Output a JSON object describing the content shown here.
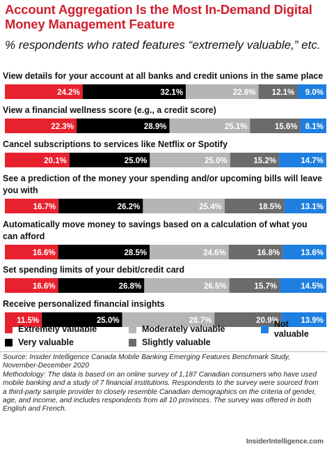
{
  "title": "Account Aggregation Is the Most In-Demand Digital Money Management Feature",
  "subtitle": "% respondents who rated features “extremely valuable,” etc.",
  "colors": {
    "extremely": "#e8212e",
    "very": "#000000",
    "moderately": "#b5b5b5",
    "slightly": "#6b6b6b",
    "not": "#1e7fe0"
  },
  "chart_data": {
    "type": "bar",
    "stacked": true,
    "orientation": "horizontal",
    "xlim": [
      0,
      100
    ],
    "categories": [
      [
        "View details for your account at all banks and credit unions in the same place"
      ],
      [
        "View a financial wellness score (e.g., a credit score)"
      ],
      [
        "Cancel subscriptions to services like Netflix or Spotify"
      ],
      [
        "See a prediction of the money your spending and/or upcoming bills will leave",
        "you with"
      ],
      [
        "Automatically move money to savings based on a calculation of what you",
        "can afford"
      ],
      [
        "Set spending limits of your debit/credit card"
      ],
      [
        "Receive personalized financial insights"
      ]
    ],
    "series": [
      {
        "name": "Extremely valuable",
        "values": [
          24.2,
          22.3,
          20.1,
          16.7,
          16.6,
          16.6,
          11.5
        ]
      },
      {
        "name": "Very valuable",
        "values": [
          32.1,
          28.9,
          25.0,
          26.2,
          28.5,
          26.8,
          25.0
        ]
      },
      {
        "name": "Moderately valuable",
        "values": [
          22.6,
          25.1,
          25.0,
          25.4,
          24.6,
          26.5,
          28.7
        ]
      },
      {
        "name": "Slightly valuable",
        "values": [
          12.1,
          15.6,
          15.2,
          18.5,
          16.8,
          15.7,
          20.9
        ]
      },
      {
        "name": "Not valuable",
        "values": [
          9.0,
          8.1,
          14.7,
          13.1,
          13.6,
          14.5,
          13.9
        ]
      }
    ],
    "legend_position": "bottom"
  },
  "legend": {
    "extremely": "Extremely valuable",
    "very": "Very valuable",
    "moderately": "Moderately valuable",
    "slightly": "Slightly valuable",
    "not": "Not valuable"
  },
  "source": {
    "line1": "Source: Insider Intelligence Canada Mobile Banking Emerging Features Benchmark Study, November-December 2020",
    "line2": "Methodology: The data is based on an online survey of 1,187 Canadian consumers who have used mobile banking and a study of 7 financial institutions. Respondents to the survey were sourced from a third-party sample provider to closely resemble Canadian demographics on the criteria of gender, age, and income, and includes respondents from all 10 provinces. The survey was offered in both English and French."
  },
  "brand": "InsiderIntelligence.com"
}
